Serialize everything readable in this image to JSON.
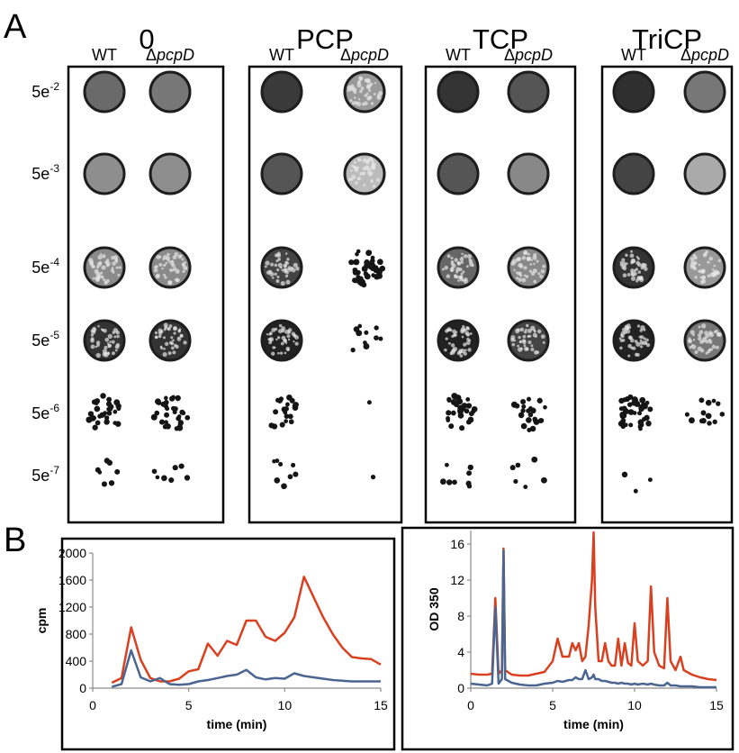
{
  "panel_a": {
    "label": "A",
    "strain_wt": "WT",
    "mutant_prefix": "Δ",
    "mutant_name": "pcpD",
    "conditions": [
      "0",
      "PCP",
      "TCP",
      "TriCP"
    ],
    "dilutions": [
      {
        "base": "5e",
        "exponent": "-2"
      },
      {
        "base": "5e",
        "exponent": "-3"
      },
      {
        "base": "5e",
        "exponent": "-4"
      },
      {
        "base": "5e",
        "exponent": "-5"
      },
      {
        "base": "5e",
        "exponent": "-6"
      },
      {
        "base": "5e",
        "exponent": "-7"
      }
    ]
  },
  "panel_b": {
    "label": "B"
  },
  "chart_data": [
    {
      "type": "line",
      "xlabel": "time (min)",
      "ylabel": "cpm",
      "x": [
        1,
        1.5,
        2,
        2.5,
        3,
        3.5,
        4,
        4.5,
        5,
        5.5,
        6,
        6.5,
        7,
        7.5,
        8,
        8.5,
        9,
        9.5,
        10,
        10.5,
        11,
        11.5,
        12,
        12.5,
        13,
        13.5,
        14,
        14.5,
        15
      ],
      "xlim": [
        0,
        15
      ],
      "xticks": [
        0,
        5,
        10,
        15
      ],
      "ylim": [
        0,
        2000
      ],
      "yticks": [
        0,
        400,
        800,
        1200,
        1600,
        2000
      ],
      "series": [
        {
          "color": "#d9401f",
          "values": [
            80,
            150,
            900,
            420,
            150,
            100,
            100,
            140,
            250,
            280,
            660,
            480,
            700,
            640,
            1000,
            1000,
            760,
            700,
            820,
            1050,
            1650,
            1350,
            1050,
            800,
            600,
            460,
            440,
            430,
            350
          ]
        },
        {
          "color": "#4a6590",
          "values": [
            20,
            60,
            560,
            160,
            100,
            150,
            60,
            50,
            60,
            100,
            120,
            150,
            180,
            200,
            270,
            160,
            130,
            150,
            140,
            220,
            180,
            160,
            140,
            120,
            110,
            100,
            100,
            100,
            100
          ]
        }
      ]
    },
    {
      "type": "line",
      "xlabel": "time (min)",
      "ylabel": "OD 350",
      "x": [
        0,
        0.5,
        1,
        1.3,
        1.5,
        1.7,
        1.9,
        2.0,
        2.1,
        2.5,
        3,
        3.5,
        4,
        4.5,
        5,
        5.3,
        5.6,
        6,
        6.2,
        6.4,
        6.6,
        6.8,
        7,
        7.2,
        7.4,
        7.5,
        7.6,
        7.8,
        8,
        8.2,
        8.4,
        8.6,
        8.8,
        9,
        9.2,
        9.4,
        9.6,
        9.8,
        10,
        10.2,
        10.5,
        10.8,
        11,
        11.2,
        11.5,
        11.8,
        12,
        12.2,
        12.5,
        12.8,
        13,
        13.5,
        14,
        14.5,
        15
      ],
      "xlim": [
        0,
        15
      ],
      "xticks": [
        0,
        5,
        10,
        15
      ],
      "ylim": [
        0,
        17.5
      ],
      "yticks": [
        0,
        4,
        8,
        12,
        16
      ],
      "series": [
        {
          "color": "#d9401f",
          "values": [
            1.6,
            1.5,
            1.5,
            1.6,
            10,
            1.6,
            2,
            15.5,
            2,
            1.5,
            1.4,
            1.4,
            1.6,
            1.8,
            3,
            5.5,
            3.5,
            3.5,
            5,
            4.2,
            5,
            3,
            3.5,
            7,
            12,
            17.3,
            9,
            3,
            3,
            5,
            3,
            2.5,
            2.5,
            5.5,
            2.5,
            5,
            2.8,
            2.5,
            7.2,
            3,
            2.5,
            3,
            11.3,
            4,
            2.5,
            2.2,
            10,
            3,
            2,
            3.5,
            2,
            1.5,
            1.2,
            1,
            0.9
          ]
        },
        {
          "color": "#4a6590",
          "values": [
            0.5,
            0.4,
            0.3,
            0.5,
            9,
            0.5,
            1,
            15.3,
            1,
            0.6,
            0.4,
            0.3,
            0.3,
            0.5,
            0.6,
            0.8,
            0.7,
            0.9,
            0.9,
            1.2,
            1,
            1,
            2,
            1,
            1.2,
            1.5,
            1,
            1,
            0.8,
            0.8,
            0.7,
            0.6,
            0.6,
            0.5,
            0.6,
            0.5,
            0.5,
            0.4,
            0.5,
            0.4,
            0.5,
            0.4,
            0.5,
            0.4,
            0.3,
            0.3,
            0.6,
            0.3,
            0.3,
            0.2,
            0.2,
            0.2,
            0.1,
            0.1,
            0.1
          ]
        }
      ]
    }
  ]
}
